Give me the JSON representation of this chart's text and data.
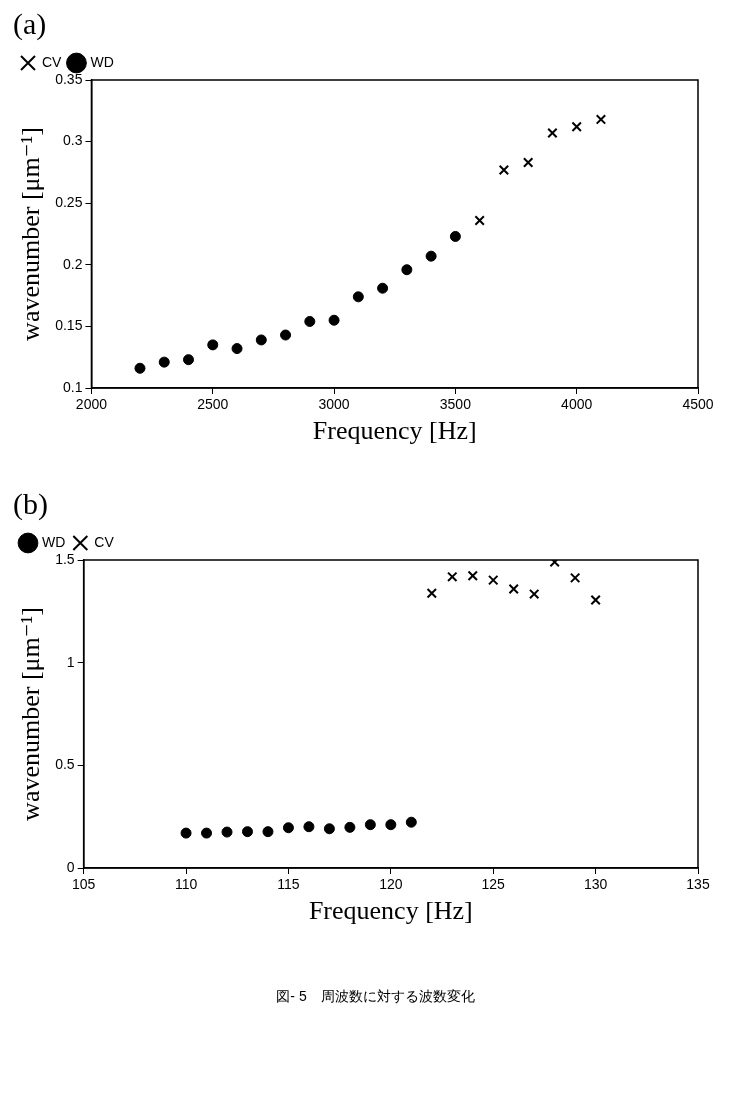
{
  "chart_data": [
    {
      "type": "scatter",
      "title": "(a)",
      "xlabel": "Frequency [Hz]",
      "ylabel": "wavenumber [μm⁻¹]",
      "xlim": [
        2000,
        4500
      ],
      "xticks": [
        2000,
        2500,
        3000,
        3500,
        4000,
        4500
      ],
      "ylim": [
        0.1,
        0.35
      ],
      "yticks": [
        0.1,
        0.15,
        0.2,
        0.25,
        0.3,
        0.35
      ],
      "grid": false,
      "legend": "top left",
      "series": [
        {
          "name": "CV",
          "color": "#000000",
          "marker": "cross",
          "x": [
            3600,
            3700,
            3800,
            3900,
            4000,
            4100
          ],
          "values": [
            0.236,
            0.277,
            0.283,
            0.307,
            0.312,
            0.318
          ]
        },
        {
          "name": "WD",
          "color": "#000000",
          "marker": "circle",
          "x": [
            2200,
            2300,
            2400,
            2500,
            2600,
            2700,
            2800,
            2900,
            3000,
            3100,
            3200,
            3300,
            3400,
            3500
          ],
          "values": [
            0.116,
            0.121,
            0.123,
            0.135,
            0.132,
            0.139,
            0.143,
            0.154,
            0.155,
            0.174,
            0.181,
            0.196,
            0.207,
            0.223
          ]
        }
      ]
    },
    {
      "type": "scatter",
      "title": "(b)",
      "xlabel": "Frequency [Hz]",
      "ylabel": "wavenumber [μm⁻¹]",
      "xlim": [
        105,
        135
      ],
      "xticks": [
        105,
        110,
        115,
        120,
        125,
        130,
        135
      ],
      "ylim": [
        0,
        1.5
      ],
      "yticks": [
        0,
        0.5,
        1,
        1.5
      ],
      "grid": false,
      "legend": "top left",
      "annotations": [
        "図- 5　周波数に対する波数変化"
      ],
      "series": [
        {
          "name": "WD",
          "color": "#000000",
          "marker": "circle",
          "x": [
            110,
            111,
            112,
            113,
            114,
            115,
            116,
            117,
            118,
            119,
            120,
            121
          ],
          "values": [
            0.17,
            0.17,
            0.175,
            0.177,
            0.177,
            0.196,
            0.201,
            0.191,
            0.198,
            0.211,
            0.211,
            0.223
          ]
        },
        {
          "name": "CV",
          "color": "#000000",
          "marker": "cross",
          "x": [
            122,
            123,
            124,
            125,
            126,
            127,
            128,
            129,
            130
          ],
          "values": [
            1.338,
            1.418,
            1.423,
            1.402,
            1.359,
            1.334,
            1.49,
            1.413,
            1.305
          ]
        }
      ]
    }
  ]
}
